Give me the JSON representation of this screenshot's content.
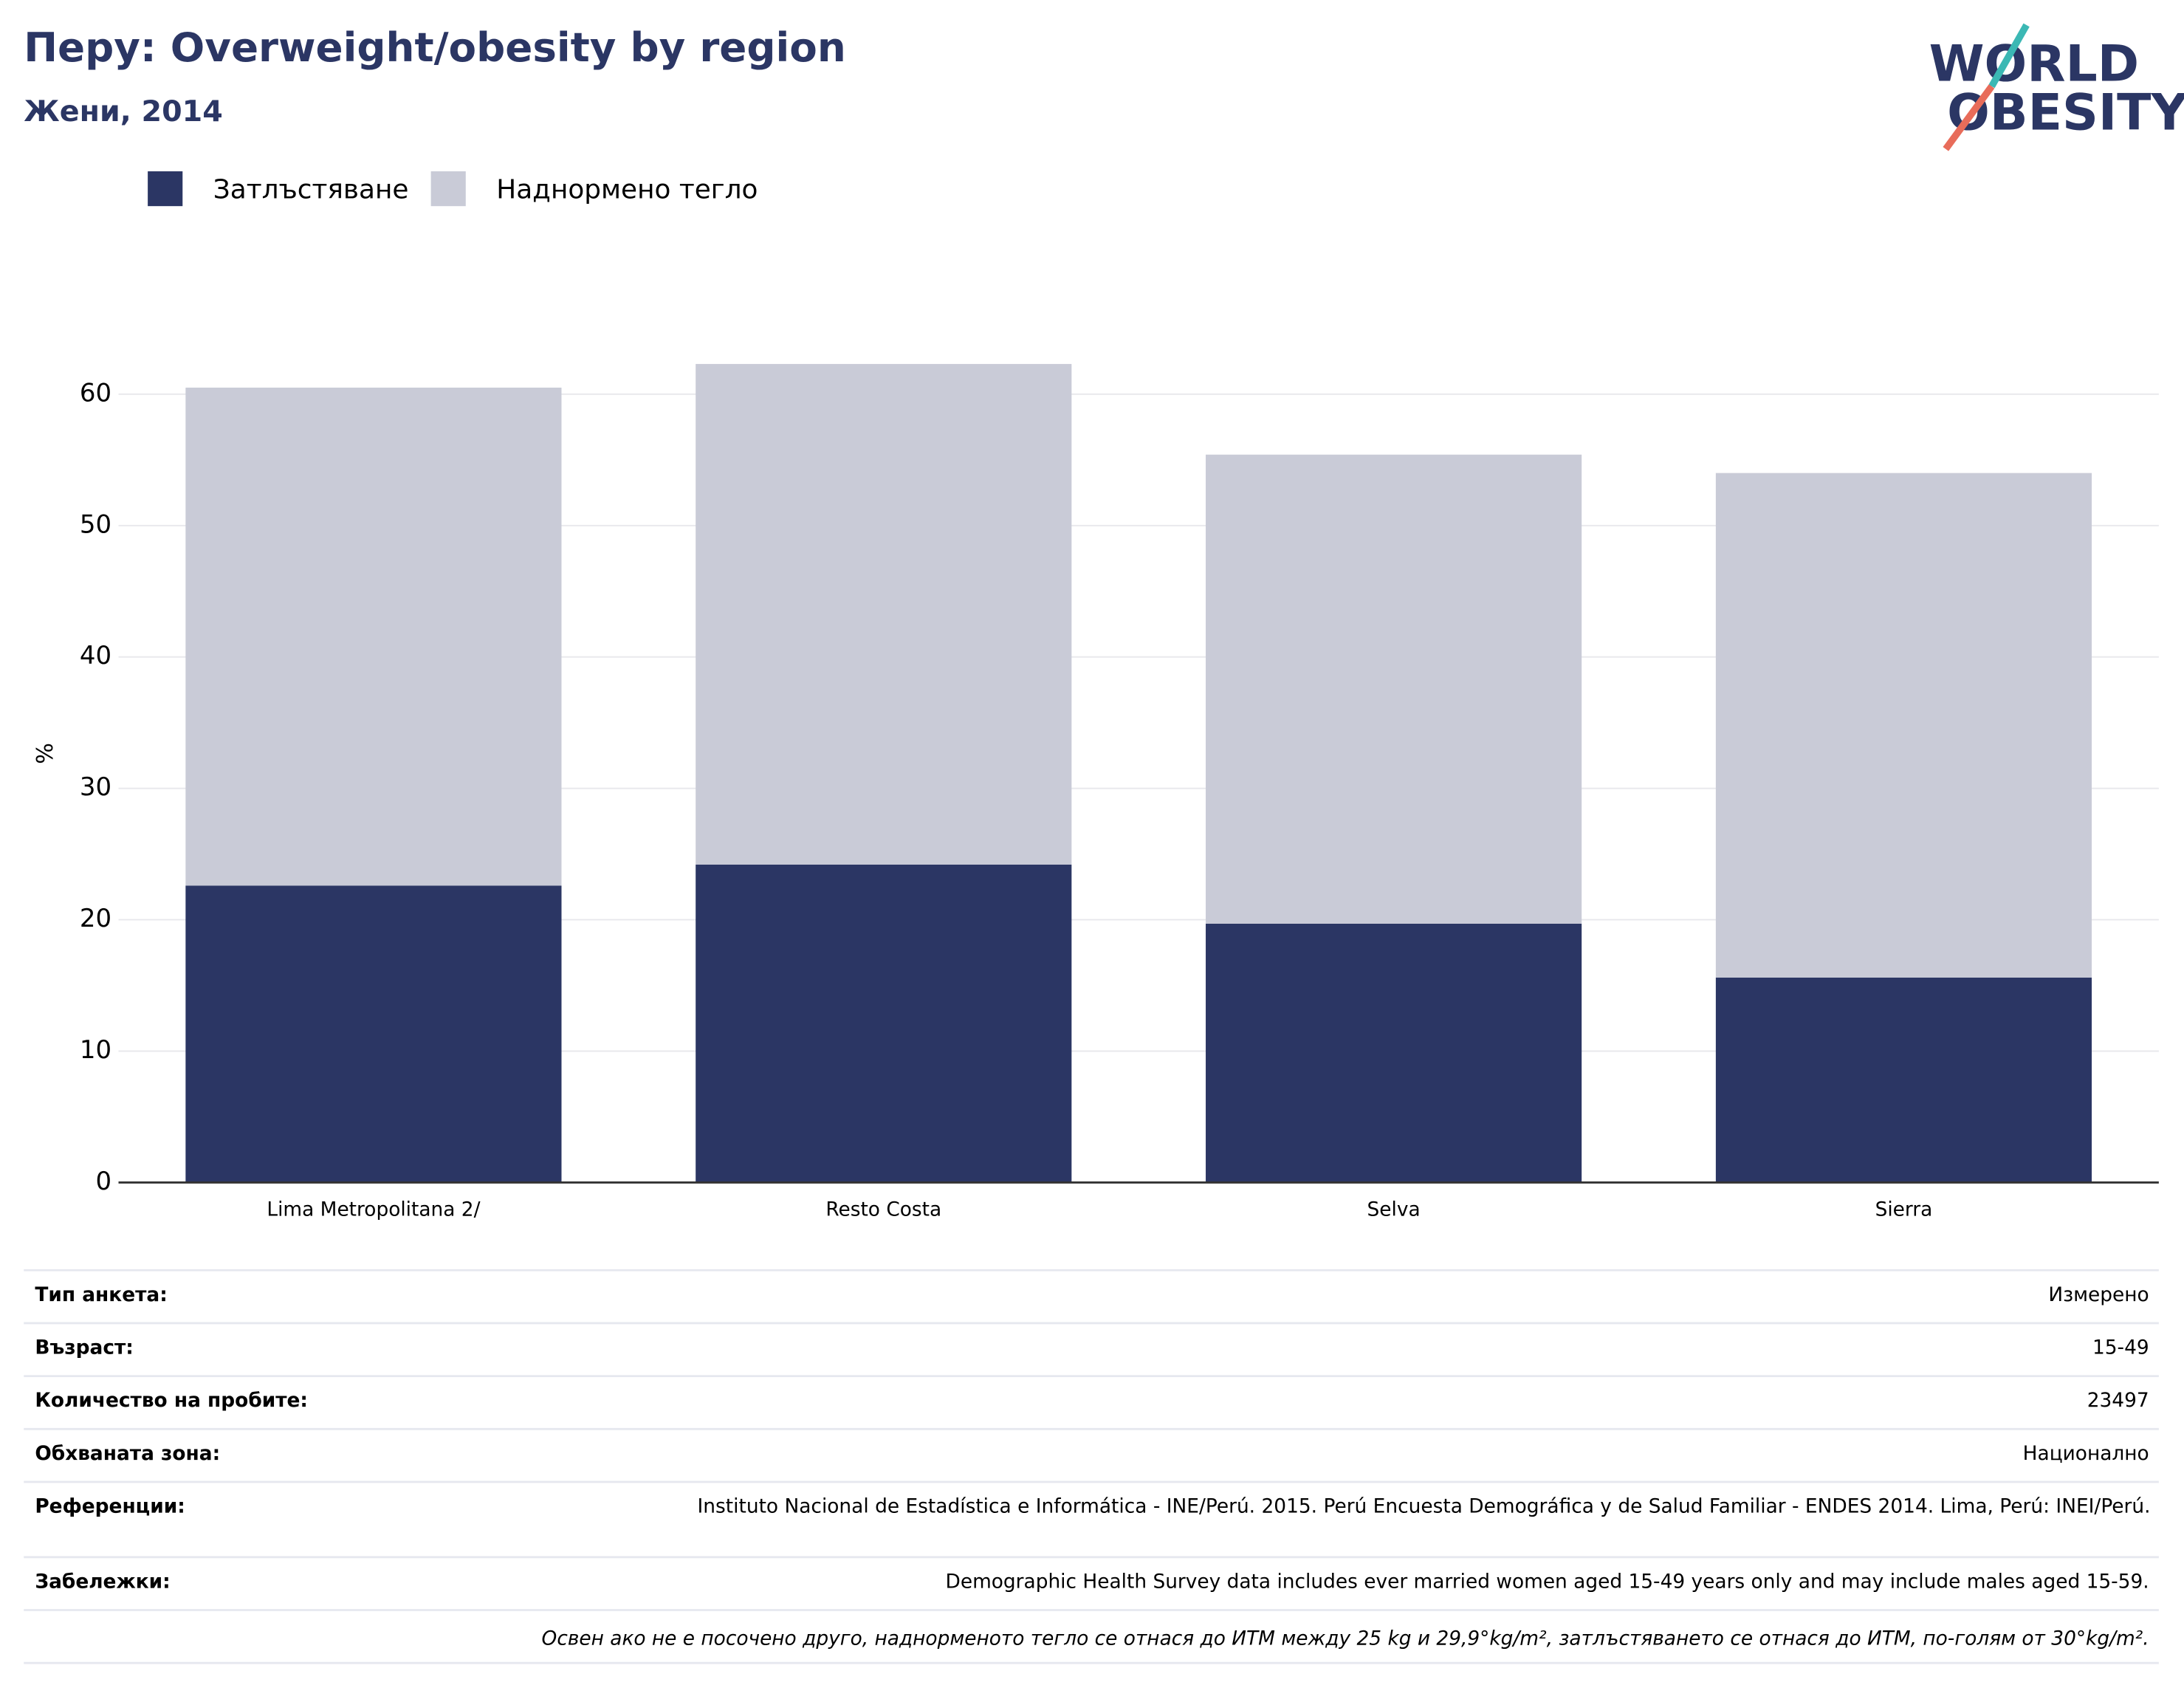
{
  "chart_data": {
    "type": "stacked_bar",
    "title": "Перу: Overweight/obesity by region",
    "subtitle": "Жени, 2014",
    "y_label": "%",
    "categories": [
      "Lima Metropolitana 2/",
      "Resto Costa",
      "Selva",
      "Sierra"
    ],
    "series": [
      {
        "name": "Затлъстяване",
        "color": "#2b3664",
        "values": [
          22.6,
          24.2,
          19.7,
          15.6
        ]
      },
      {
        "name": "Наднормено тегло",
        "color": "#c9cbd7",
        "values": [
          37.9,
          38.1,
          35.7,
          38.4
        ]
      }
    ],
    "ylim": [
      0,
      65
    ],
    "yticks": [
      0,
      10,
      20,
      30,
      40,
      50,
      60
    ],
    "grid": true,
    "legend": "top-left"
  },
  "logo": {
    "line1": "WORLD",
    "line2": "OBESITY"
  },
  "table": {
    "rows": [
      [
        "Тип анкета:",
        "Измерено"
      ],
      [
        "Възраст:",
        "15-49"
      ],
      [
        "Количество на пробите:",
        "23497"
      ],
      [
        "Обхваната зона:",
        "Национално"
      ],
      [
        "Референции:",
        "Instituto Nacional de Estadística e Informática - INE/Perú. 2015. Perú Encuesta Demográfica y de Salud Familiar - ENDES 2014. Lima, Perú: INEI/Perú."
      ],
      [
        "Забележки:",
        "Demographic Health Survey data includes ever married women aged 15-49 years only and may include males aged 15-59."
      ]
    ],
    "note": "Освен ако не е посочено друго, наднорменото тегло се отнася до ИТМ между 25 kg и 29,9°kg/m², затлъстяването се отнася до ИТМ, по-голям от 30°kg/m²."
  }
}
